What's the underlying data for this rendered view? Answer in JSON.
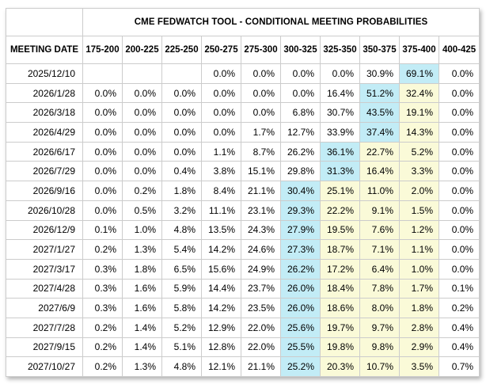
{
  "title": "CME FEDWATCH TOOL - CONDITIONAL MEETING PROBABILITIES",
  "colors": {
    "highlight_cyan": "#c2ecf6",
    "highlight_yellow": "#fafad8",
    "grid_line": "#cccccc",
    "text": "#000000",
    "background": "#ffffff"
  },
  "chart_data": {
    "type": "table",
    "title": "CME FEDWATCH TOOL - CONDITIONAL MEETING PROBABILITIES",
    "date_header": "MEETING DATE",
    "rate_range_headers": [
      "175-200",
      "200-225",
      "225-250",
      "250-275",
      "275-300",
      "300-325",
      "325-350",
      "350-375",
      "375-400",
      "400-425"
    ],
    "highlight_legend": {
      "cyan_index_meaning": "highest-probability rate bucket for that meeting (pale cyan cell)",
      "yellow_indexes_meaning": "buckets between the modal bucket and the 375-400 current-rate bucket (pale yellow cells)"
    },
    "rows": [
      {
        "date": "2025/12/10",
        "values": [
          "",
          "",
          "",
          "0.0%",
          "0.0%",
          "0.0%",
          "0.0%",
          "30.9%",
          "69.1%",
          "0.0%"
        ],
        "cyan": 8,
        "yellow": []
      },
      {
        "date": "2026/1/28",
        "values": [
          "0.0%",
          "0.0%",
          "0.0%",
          "0.0%",
          "0.0%",
          "0.0%",
          "16.4%",
          "51.2%",
          "32.4%",
          "0.0%"
        ],
        "cyan": 7,
        "yellow": [
          8
        ]
      },
      {
        "date": "2026/3/18",
        "values": [
          "0.0%",
          "0.0%",
          "0.0%",
          "0.0%",
          "0.0%",
          "6.8%",
          "30.7%",
          "43.5%",
          "19.1%",
          "0.0%"
        ],
        "cyan": 7,
        "yellow": [
          8
        ]
      },
      {
        "date": "2026/4/29",
        "values": [
          "0.0%",
          "0.0%",
          "0.0%",
          "0.0%",
          "1.7%",
          "12.7%",
          "33.9%",
          "37.4%",
          "14.3%",
          "0.0%"
        ],
        "cyan": 7,
        "yellow": [
          8
        ]
      },
      {
        "date": "2026/6/17",
        "values": [
          "0.0%",
          "0.0%",
          "0.0%",
          "1.1%",
          "8.7%",
          "26.2%",
          "36.1%",
          "22.7%",
          "5.2%",
          "0.0%"
        ],
        "cyan": 6,
        "yellow": [
          7,
          8
        ]
      },
      {
        "date": "2026/7/29",
        "values": [
          "0.0%",
          "0.0%",
          "0.4%",
          "3.8%",
          "15.1%",
          "29.8%",
          "31.3%",
          "16.4%",
          "3.3%",
          "0.0%"
        ],
        "cyan": 6,
        "yellow": [
          7,
          8
        ]
      },
      {
        "date": "2026/9/16",
        "values": [
          "0.0%",
          "0.2%",
          "1.8%",
          "8.4%",
          "21.1%",
          "30.4%",
          "25.1%",
          "11.0%",
          "2.0%",
          "0.0%"
        ],
        "cyan": 5,
        "yellow": [
          6,
          7,
          8
        ]
      },
      {
        "date": "2026/10/28",
        "values": [
          "0.0%",
          "0.5%",
          "3.2%",
          "11.1%",
          "23.1%",
          "29.3%",
          "22.2%",
          "9.1%",
          "1.5%",
          "0.0%"
        ],
        "cyan": 5,
        "yellow": [
          6,
          7,
          8
        ]
      },
      {
        "date": "2026/12/9",
        "values": [
          "0.1%",
          "1.0%",
          "4.8%",
          "13.5%",
          "24.3%",
          "27.9%",
          "19.5%",
          "7.6%",
          "1.2%",
          "0.0%"
        ],
        "cyan": 5,
        "yellow": [
          6,
          7,
          8
        ]
      },
      {
        "date": "2027/1/27",
        "values": [
          "0.2%",
          "1.3%",
          "5.4%",
          "14.2%",
          "24.6%",
          "27.3%",
          "18.7%",
          "7.1%",
          "1.1%",
          "0.0%"
        ],
        "cyan": 5,
        "yellow": [
          6,
          7,
          8
        ]
      },
      {
        "date": "2027/3/17",
        "values": [
          "0.3%",
          "1.8%",
          "6.5%",
          "15.6%",
          "24.9%",
          "26.2%",
          "17.2%",
          "6.4%",
          "1.0%",
          "0.0%"
        ],
        "cyan": 5,
        "yellow": [
          6,
          7,
          8
        ]
      },
      {
        "date": "2027/4/28",
        "values": [
          "0.3%",
          "1.6%",
          "5.9%",
          "14.4%",
          "23.7%",
          "26.0%",
          "18.4%",
          "7.8%",
          "1.7%",
          "0.1%"
        ],
        "cyan": 5,
        "yellow": [
          6,
          7,
          8
        ]
      },
      {
        "date": "2027/6/9",
        "values": [
          "0.3%",
          "1.6%",
          "5.8%",
          "14.2%",
          "23.5%",
          "26.0%",
          "18.6%",
          "8.0%",
          "1.8%",
          "0.2%"
        ],
        "cyan": 5,
        "yellow": [
          6,
          7,
          8
        ]
      },
      {
        "date": "2027/7/28",
        "values": [
          "0.2%",
          "1.4%",
          "5.2%",
          "12.9%",
          "22.0%",
          "25.6%",
          "19.7%",
          "9.7%",
          "2.8%",
          "0.4%"
        ],
        "cyan": 5,
        "yellow": [
          6,
          7,
          8
        ]
      },
      {
        "date": "2027/9/15",
        "values": [
          "0.2%",
          "1.4%",
          "5.1%",
          "12.8%",
          "22.0%",
          "25.5%",
          "19.8%",
          "9.8%",
          "2.9%",
          "0.4%"
        ],
        "cyan": 5,
        "yellow": [
          6,
          7,
          8
        ]
      },
      {
        "date": "2027/10/27",
        "values": [
          "0.2%",
          "1.3%",
          "4.8%",
          "12.1%",
          "21.1%",
          "25.2%",
          "20.3%",
          "10.7%",
          "3.5%",
          "0.7%"
        ],
        "cyan": 5,
        "yellow": [
          6,
          7,
          8
        ]
      }
    ]
  }
}
